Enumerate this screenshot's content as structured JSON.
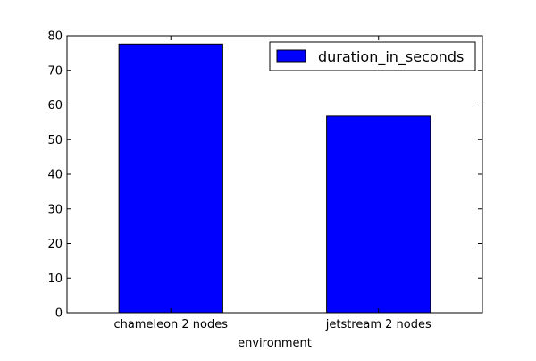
{
  "chart_data": {
    "type": "bar",
    "categories": [
      "chameleon 2 nodes",
      "jetstream 2 nodes"
    ],
    "series": [
      {
        "name": "duration_in_seconds",
        "values": [
          77.6,
          56.8
        ],
        "color": "#0000ff"
      }
    ],
    "title": "",
    "xlabel": "environment",
    "ylabel": "",
    "ylim": [
      0,
      80
    ],
    "yticks": [
      0,
      10,
      20,
      30,
      40,
      50,
      60,
      70,
      80
    ],
    "grid": false,
    "legend": {
      "position": "top-right",
      "entries": [
        "duration_in_seconds"
      ]
    }
  }
}
